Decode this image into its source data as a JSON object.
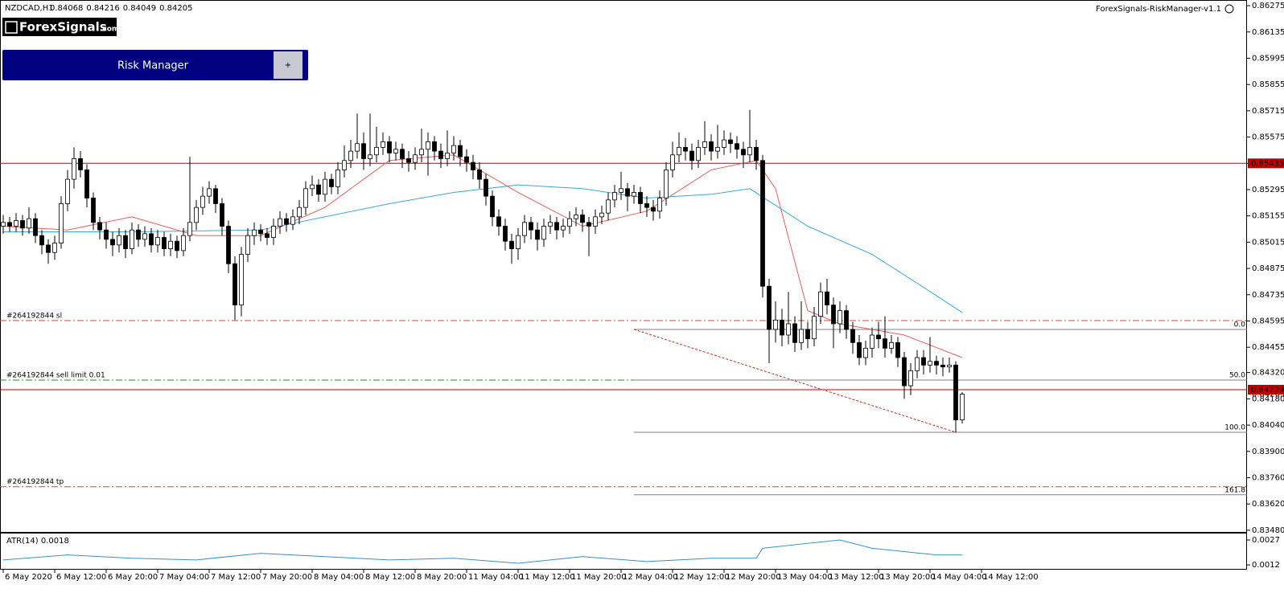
{
  "chart_data": {
    "type": "candlestick",
    "symbol": "NZDCAD,H1",
    "indicator_name": "ForexSignals-RiskManager-v1.1",
    "up_color": "#ffffff",
    "down_color": "#000000",
    "open": [
      0.851,
      0.8512,
      0.851,
      0.8513,
      0.8509,
      0.8514,
      0.8505,
      0.85,
      0.8496,
      0.8501,
      0.8522,
      0.8535,
      0.8546,
      0.854,
      0.8525,
      0.8512,
      0.8508,
      0.8503,
      0.85,
      0.8505,
      0.8498,
      0.8508,
      0.8503,
      0.8506,
      0.85,
      0.8504,
      0.8498,
      0.8502,
      0.8497,
      0.8505,
      0.8512,
      0.852,
      0.8526,
      0.853,
      0.8522,
      0.851,
      0.849,
      0.8468,
      0.8495,
      0.8505,
      0.8508,
      0.8506,
      0.8504,
      0.851,
      0.8514,
      0.8511,
      0.8515,
      0.852,
      0.853,
      0.8532,
      0.8527,
      0.8535,
      0.8531,
      0.854,
      0.8545,
      0.855,
      0.8554,
      0.8546,
      0.8548,
      0.8552,
      0.8555,
      0.8549,
      0.8551,
      0.8546,
      0.8544,
      0.8548,
      0.8551,
      0.8555,
      0.855,
      0.8546,
      0.8549,
      0.8553,
      0.8547,
      0.8544,
      0.854,
      0.8535,
      0.8526,
      0.8515,
      0.851,
      0.8502,
      0.8498,
      0.8505,
      0.8512,
      0.8508,
      0.8503,
      0.851,
      0.8512,
      0.8508,
      0.851,
      0.8514,
      0.8516,
      0.8512,
      0.851,
      0.8515,
      0.8517,
      0.8524,
      0.8528,
      0.853,
      0.8526,
      0.8528,
      0.8522,
      0.852,
      0.8518,
      0.8525,
      0.854,
      0.8548,
      0.8552,
      0.855,
      0.8545,
      0.8552,
      0.8555,
      0.855,
      0.8552,
      0.8556,
      0.8554,
      0.8551,
      0.8548,
      0.8552,
      0.8545,
      0.8478,
      0.8455,
      0.846,
      0.8452,
      0.8458,
      0.8448,
      0.8455,
      0.845,
      0.8462,
      0.8475,
      0.8468,
      0.8458,
      0.8465,
      0.8455,
      0.8448,
      0.844,
      0.8445,
      0.8452,
      0.845,
      0.8445,
      0.8448,
      0.844,
      0.8425,
      0.8433,
      0.844,
      0.8436,
      0.8438,
      0.8436,
      0.8435,
      0.8436,
      0.84068
    ],
    "high": [
      0.8516,
      0.8515,
      0.8517,
      0.8516,
      0.852,
      0.8517,
      0.8508,
      0.8503,
      0.8505,
      0.8526,
      0.854,
      0.8552,
      0.855,
      0.8543,
      0.8528,
      0.8515,
      0.8512,
      0.8507,
      0.8509,
      0.8508,
      0.8512,
      0.8511,
      0.851,
      0.8509,
      0.8508,
      0.8507,
      0.8506,
      0.8505,
      0.8509,
      0.8547,
      0.8524,
      0.8531,
      0.8534,
      0.8532,
      0.8525,
      0.8513,
      0.8494,
      0.8499,
      0.8509,
      0.8512,
      0.8511,
      0.8509,
      0.8514,
      0.8518,
      0.8517,
      0.8519,
      0.8524,
      0.8534,
      0.8537,
      0.8535,
      0.8539,
      0.8538,
      0.8544,
      0.8553,
      0.8556,
      0.857,
      0.856,
      0.857,
      0.8563,
      0.856,
      0.8558,
      0.8555,
      0.8554,
      0.855,
      0.8552,
      0.8562,
      0.856,
      0.8558,
      0.8554,
      0.8561,
      0.8558,
      0.8556,
      0.8551,
      0.8548,
      0.8544,
      0.8538,
      0.8529,
      0.8519,
      0.8514,
      0.8506,
      0.8509,
      0.8516,
      0.8515,
      0.8512,
      0.8514,
      0.8516,
      0.8515,
      0.8514,
      0.8518,
      0.852,
      0.8519,
      0.8515,
      0.8519,
      0.8521,
      0.8528,
      0.8532,
      0.8539,
      0.8533,
      0.8532,
      0.8531,
      0.8526,
      0.8524,
      0.8529,
      0.8544,
      0.8555,
      0.856,
      0.8557,
      0.8554,
      0.8556,
      0.8566,
      0.8559,
      0.8564,
      0.8561,
      0.856,
      0.8558,
      0.8555,
      0.8572,
      0.8556,
      0.8548,
      0.8482,
      0.847,
      0.8466,
      0.8475,
      0.8462,
      0.847,
      0.8459,
      0.8467,
      0.848,
      0.8482,
      0.8472,
      0.847,
      0.8468,
      0.8459,
      0.8452,
      0.8449,
      0.8456,
      0.8459,
      0.8462,
      0.8452,
      0.8451,
      0.8443,
      0.8437,
      0.8444,
      0.8444,
      0.8451,
      0.8441,
      0.844,
      0.844,
      0.8438,
      0.84216
    ],
    "low": [
      0.8506,
      0.8507,
      0.8507,
      0.8505,
      0.8506,
      0.8501,
      0.8495,
      0.849,
      0.8492,
      0.8498,
      0.8518,
      0.853,
      0.8536,
      0.852,
      0.8508,
      0.8503,
      0.8498,
      0.8494,
      0.8496,
      0.8493,
      0.8495,
      0.8499,
      0.8499,
      0.8496,
      0.8496,
      0.8494,
      0.8494,
      0.8493,
      0.8494,
      0.8502,
      0.8508,
      0.8516,
      0.8522,
      0.8517,
      0.8505,
      0.8485,
      0.846,
      0.8462,
      0.8491,
      0.85,
      0.8502,
      0.85,
      0.85,
      0.8506,
      0.8507,
      0.8508,
      0.8511,
      0.8516,
      0.8526,
      0.8523,
      0.8523,
      0.8527,
      0.8527,
      0.8536,
      0.8541,
      0.8546,
      0.854,
      0.8542,
      0.8544,
      0.8548,
      0.8544,
      0.8545,
      0.8541,
      0.8539,
      0.854,
      0.8544,
      0.8537,
      0.8545,
      0.8541,
      0.8542,
      0.8545,
      0.8542,
      0.8539,
      0.8535,
      0.853,
      0.8521,
      0.851,
      0.8505,
      0.8497,
      0.849,
      0.8492,
      0.8501,
      0.8503,
      0.8497,
      0.8499,
      0.8506,
      0.8503,
      0.8504,
      0.8506,
      0.851,
      0.8507,
      0.8494,
      0.8506,
      0.8511,
      0.8513,
      0.852,
      0.8524,
      0.8518,
      0.8522,
      0.8517,
      0.8515,
      0.8513,
      0.8514,
      0.8521,
      0.8536,
      0.8544,
      0.8545,
      0.854,
      0.8541,
      0.8548,
      0.8545,
      0.8546,
      0.8548,
      0.8549,
      0.8546,
      0.8541,
      0.8544,
      0.854,
      0.8472,
      0.8437,
      0.8448,
      0.8446,
      0.8447,
      0.8443,
      0.8444,
      0.8445,
      0.8446,
      0.8458,
      0.8463,
      0.8445,
      0.8453,
      0.845,
      0.8442,
      0.8436,
      0.8436,
      0.844,
      0.8445,
      0.844,
      0.8442,
      0.8435,
      0.8418,
      0.842,
      0.8429,
      0.8431,
      0.8432,
      0.8431,
      0.843,
      0.8432,
      0.84,
      0.84049
    ],
    "close": [
      0.8512,
      0.851,
      0.8513,
      0.8509,
      0.8514,
      0.8505,
      0.85,
      0.8496,
      0.8501,
      0.8522,
      0.8535,
      0.8546,
      0.854,
      0.8525,
      0.8512,
      0.8508,
      0.8503,
      0.85,
      0.8505,
      0.8498,
      0.8508,
      0.8503,
      0.8506,
      0.85,
      0.8504,
      0.8498,
      0.8502,
      0.8497,
      0.8505,
      0.8512,
      0.852,
      0.8526,
      0.853,
      0.8522,
      0.851,
      0.849,
      0.8468,
      0.8495,
      0.8505,
      0.8508,
      0.8506,
      0.8504,
      0.851,
      0.8514,
      0.8511,
      0.8515,
      0.852,
      0.853,
      0.8532,
      0.8527,
      0.8535,
      0.8531,
      0.854,
      0.8545,
      0.855,
      0.8554,
      0.8546,
      0.8548,
      0.8552,
      0.8555,
      0.8549,
      0.8551,
      0.8546,
      0.8544,
      0.8548,
      0.8551,
      0.8555,
      0.855,
      0.8546,
      0.8549,
      0.8553,
      0.8547,
      0.8544,
      0.854,
      0.8535,
      0.8526,
      0.8515,
      0.851,
      0.8502,
      0.8498,
      0.8505,
      0.8512,
      0.8508,
      0.8503,
      0.851,
      0.8512,
      0.8508,
      0.851,
      0.8514,
      0.8516,
      0.8512,
      0.851,
      0.8515,
      0.8517,
      0.8524,
      0.8528,
      0.853,
      0.8526,
      0.8528,
      0.8522,
      0.852,
      0.8518,
      0.8525,
      0.854,
      0.8548,
      0.8552,
      0.855,
      0.8545,
      0.8552,
      0.8555,
      0.855,
      0.8552,
      0.8556,
      0.8554,
      0.8551,
      0.8548,
      0.8552,
      0.8545,
      0.8478,
      0.8455,
      0.846,
      0.8452,
      0.8458,
      0.8448,
      0.8455,
      0.845,
      0.8462,
      0.8475,
      0.8468,
      0.8458,
      0.8465,
      0.8455,
      0.8448,
      0.844,
      0.8445,
      0.8452,
      0.845,
      0.8445,
      0.8448,
      0.844,
      0.8425,
      0.8433,
      0.844,
      0.8436,
      0.8438,
      0.8436,
      0.8435,
      0.8436,
      0.84068,
      0.84205
    ],
    "xlim": [
      -0.5,
      193.25
    ],
    "xticks": [
      {
        "value": 0,
        "label": "6 May 2020"
      },
      {
        "value": 8,
        "label": "6 May 12:00"
      },
      {
        "value": 16,
        "label": "6 May 20:00"
      },
      {
        "value": 24,
        "label": "7 May 04:00"
      },
      {
        "value": 32,
        "label": "7 May 12:00"
      },
      {
        "value": 40,
        "label": "7 May 20:00"
      },
      {
        "value": 48,
        "label": "8 May 04:00"
      },
      {
        "value": 56,
        "label": "8 May 12:00"
      },
      {
        "value": 64,
        "label": "8 May 20:00"
      },
      {
        "value": 72,
        "label": "11 May 04:00"
      },
      {
        "value": 80,
        "label": "11 May 12:00"
      },
      {
        "value": 88,
        "label": "11 May 20:00"
      },
      {
        "value": 96,
        "label": "12 May 04:00"
      },
      {
        "value": 104,
        "label": "12 May 12:00"
      },
      {
        "value": 112,
        "label": "12 May 20:00"
      },
      {
        "value": 120,
        "label": "13 May 04:00"
      },
      {
        "value": 128,
        "label": "13 May 12:00"
      },
      {
        "value": 136,
        "label": "13 May 20:00"
      },
      {
        "value": 144,
        "label": "14 May 04:00"
      },
      {
        "value": 152,
        "label": "14 May 12:00"
      }
    ],
    "ylim": [
      0.83471,
      0.86301
    ],
    "yticks": [
      0.86275,
      0.86135,
      0.85995,
      0.85855,
      0.85715,
      0.85575,
      0.85435,
      0.85295,
      0.85155,
      0.85015,
      0.84875,
      0.84735,
      0.84595,
      0.84455,
      {
        "value": 0.8432,
        "label": "0.84320"
      },
      {
        "value": 0.8418,
        "label": "0.84180"
      },
      {
        "value": 0.8404,
        "label": "0.84040"
      },
      {
        "value": 0.839,
        "label": "0.83900"
      },
      {
        "value": 0.8376,
        "label": "0.83760"
      },
      {
        "value": 0.8362,
        "label": "0.83620"
      },
      {
        "value": 0.8348,
        "label": "0.83480"
      }
    ],
    "moving_averages": [
      {
        "color": "#e06060",
        "x": [
          0,
          10,
          20,
          30,
          40,
          50,
          60,
          70,
          80,
          90,
          100,
          110,
          117,
          120,
          125,
          130,
          140,
          149
        ],
        "values": [
          0.851,
          0.8508,
          0.8515,
          0.8505,
          0.8505,
          0.852,
          0.8545,
          0.8548,
          0.8528,
          0.851,
          0.8518,
          0.854,
          0.8545,
          0.853,
          0.8465,
          0.8458,
          0.8452,
          0.844
        ]
      },
      {
        "color": "#3aa8d8",
        "x": [
          0,
          20,
          40,
          60,
          70,
          80,
          90,
          100,
          110,
          116,
          125,
          135,
          145,
          149
        ],
        "values": [
          0.8507,
          0.8507,
          0.8508,
          0.8522,
          0.8528,
          0.8532,
          0.853,
          0.8525,
          0.8527,
          0.853,
          0.851,
          0.8495,
          0.8473,
          0.8464
        ]
      }
    ],
    "levels": [
      {
        "label": "#264192844 sl",
        "value": 0.84597,
        "color": "#c0502a"
      },
      {
        "label": "#264192844 sell limit 0.01",
        "value": 0.8428,
        "color": "#2e8b2e"
      },
      {
        "label": "#264192844 tp",
        "value": 0.83712,
        "color": "#c0502a"
      }
    ],
    "price_lines": [
      {
        "value": 0.85435,
        "color": "#c00000"
      },
      {
        "value": 0.84229,
        "color": "#c00000"
      }
    ],
    "bid": 0.84205,
    "fibonacci": {
      "x": [
        98,
        148
      ],
      "color": "#808080",
      "trend_color": "#c03030",
      "levels": [
        {
          "value": 0.8455,
          "label": "0.0"
        },
        {
          "value": 0.8428,
          "label": "50.0"
        },
        {
          "value": 0.84002,
          "label": "100.0"
        },
        {
          "value": 0.83669,
          "label": "161.8"
        }
      ]
    },
    "atr": {
      "label": "ATR(14) 0.0018",
      "color": "#3a8fc8",
      "ylim": [
        0.00096,
        0.00309
      ],
      "yticks": [
        0.0027,
        0.0012
      ],
      "x": [
        0,
        10,
        20,
        30,
        40,
        50,
        60,
        70,
        80,
        90,
        100,
        110,
        117,
        118,
        125,
        130,
        135,
        140,
        145,
        149
      ],
      "values": [
        0.0015,
        0.0018,
        0.0016,
        0.0015,
        0.0019,
        0.0017,
        0.0015,
        0.0016,
        0.0013,
        0.0017,
        0.0014,
        0.0016,
        0.0016,
        0.0022,
        0.0025,
        0.0027,
        0.0022,
        0.002,
        0.0018,
        0.0018
      ]
    }
  },
  "ui": {
    "logo": "ForexSignals",
    "logo_suffix": ".com",
    "button": "Risk Manager",
    "plus": "+"
  }
}
